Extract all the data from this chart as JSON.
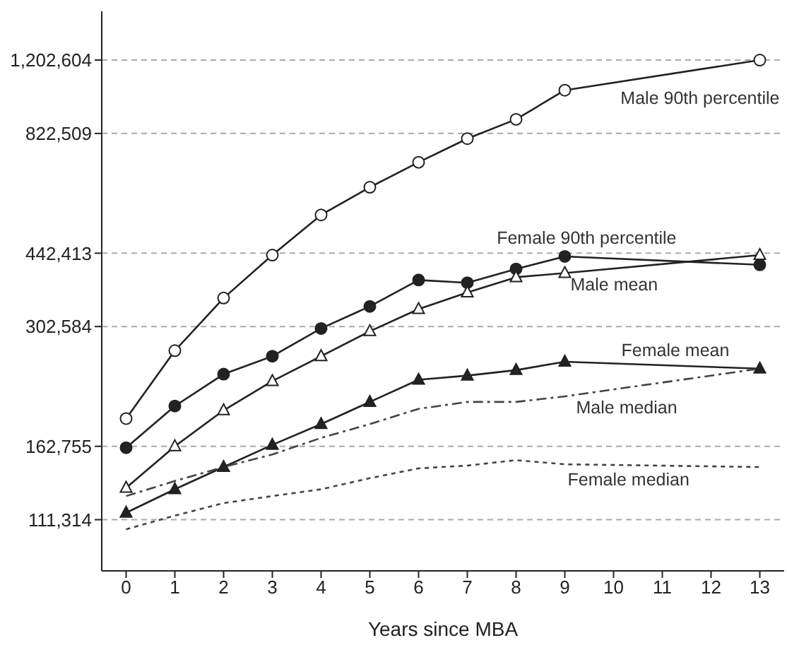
{
  "chart_data": {
    "type": "line",
    "xlabel": "Years since MBA",
    "x": [
      0,
      1,
      2,
      3,
      4,
      5,
      6,
      7,
      8,
      9,
      13
    ],
    "xlim": [
      -0.5,
      13.5
    ],
    "xticks": [
      0,
      1,
      2,
      3,
      4,
      5,
      6,
      7,
      8,
      9,
      10,
      11,
      12,
      13
    ],
    "ylim": [
      85400,
      1548000
    ],
    "log": true,
    "yticks": [
      {
        "value": 111314,
        "label": "111,314"
      },
      {
        "value": 162755,
        "label": "162,755"
      },
      {
        "value": 302584,
        "label": "302,584"
      },
      {
        "value": 442413,
        "label": "442,413"
      },
      {
        "value": 822509,
        "label": "822,509"
      },
      {
        "value": 1202604,
        "label": "1,202,604"
      }
    ],
    "grid": "y",
    "series": [
      {
        "name": "Male 90th percentile",
        "color": "#222222",
        "marker": "circle",
        "line_style": "solid",
        "values": [
          187900,
          267100,
          350700,
          438100,
          539400,
          622500,
          708500,
          800600,
          884800,
          1028800,
          1202604
        ]
      },
      {
        "name": "Female 90th percentile",
        "color": "#222222",
        "marker": "circle",
        "line_style": "solid",
        "values": [
          161600,
          200500,
          236500,
          259500,
          299600,
          335900,
          385000,
          379600,
          407700,
          435000,
          416600
        ]
      },
      {
        "name": "Male mean",
        "color": "#222222",
        "marker": "triangle",
        "line_style": "solid",
        "values": [
          131300,
          162800,
          196100,
          228100,
          259500,
          295300,
          331200,
          361000,
          390600,
          399100,
          438100
        ]
      },
      {
        "name": "Female mean",
        "color": "#222222",
        "marker": "triangle",
        "line_style": "solid",
        "values": [
          115400,
          130300,
          146200,
          164000,
          182600,
          204800,
          229700,
          234700,
          241500,
          252200,
          243300
        ]
      },
      {
        "name": "Male median",
        "color": "#444444",
        "marker": "none",
        "line_style": "dashed",
        "values": [
          125800,
          136000,
          146200,
          156000,
          170000,
          182600,
          197600,
          204800,
          204800,
          210800,
          243300
        ]
      },
      {
        "name": "Female median",
        "color": "#444444",
        "marker": "none",
        "line_style": "dotted",
        "values": [
          105900,
          113700,
          121300,
          125800,
          130300,
          138000,
          145200,
          147300,
          151500,
          148300,
          146200
        ]
      }
    ]
  }
}
